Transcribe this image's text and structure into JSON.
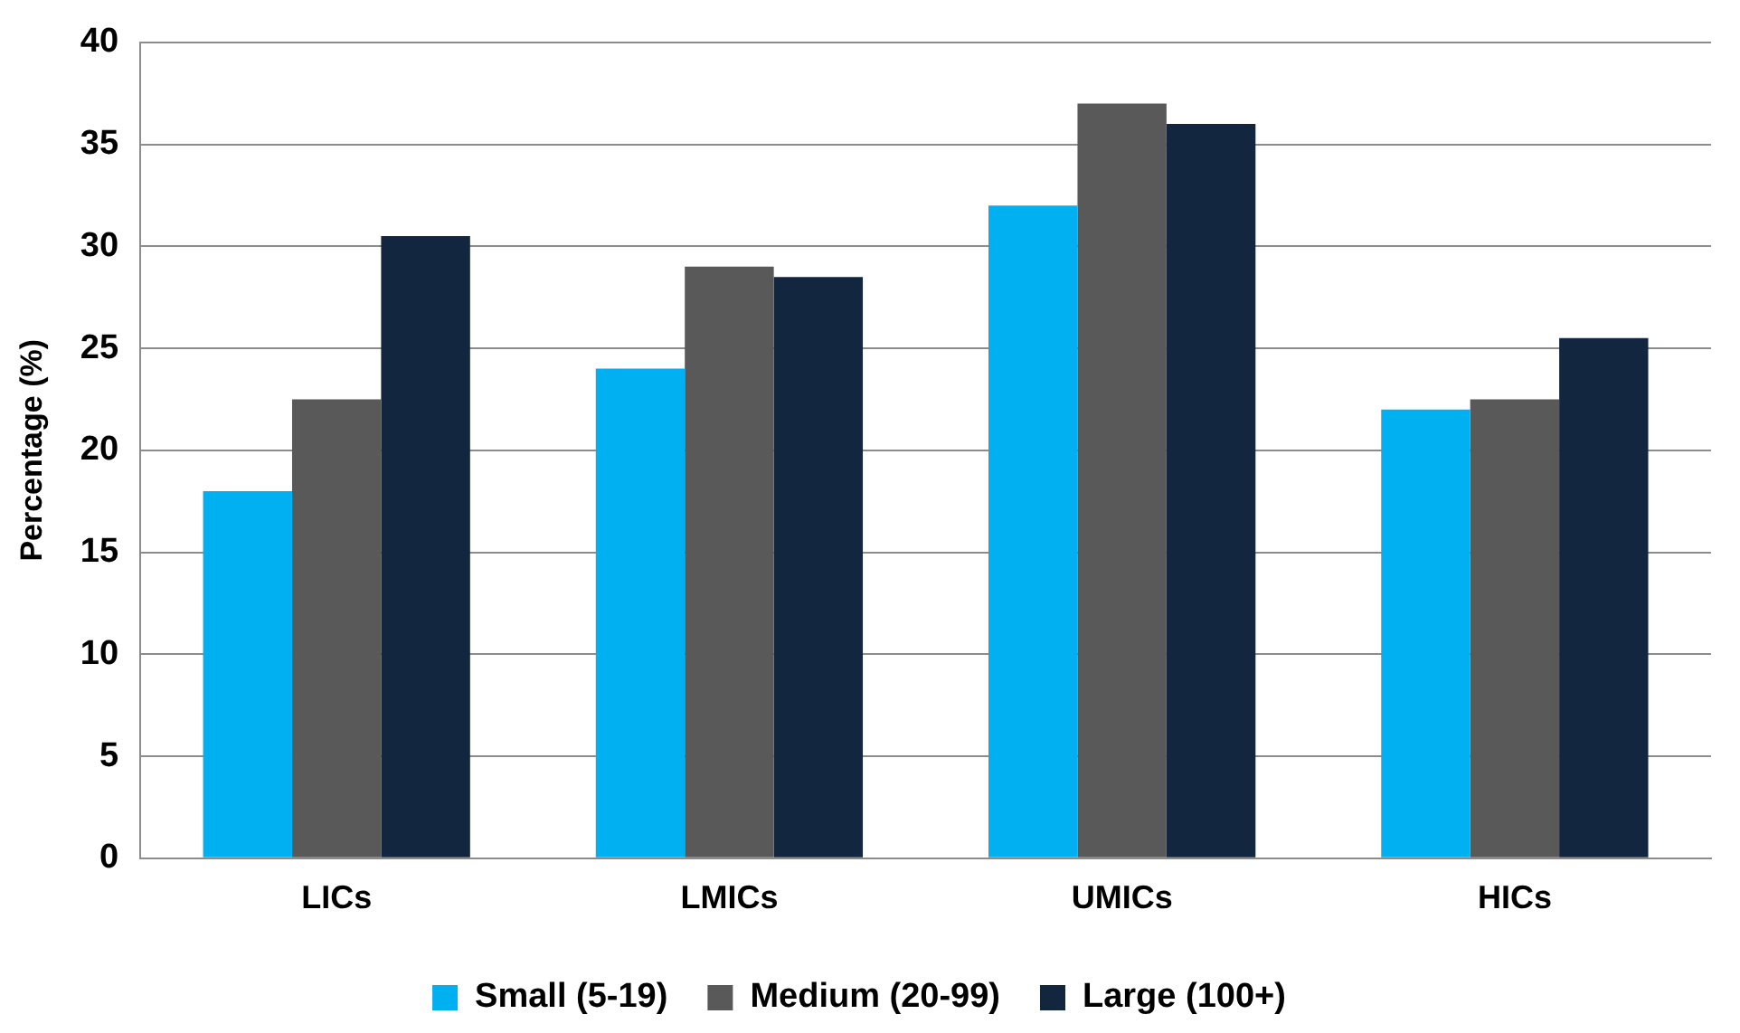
{
  "chart_data": {
    "type": "bar",
    "ylabel": "Percentage (%)",
    "categories": [
      "LICs",
      "LMICs",
      "UMICs",
      "HICs"
    ],
    "series": [
      {
        "name": "Small (5-19)",
        "color": "#00b0f0",
        "values": [
          18,
          24,
          32,
          22
        ]
      },
      {
        "name": "Medium (20-99)",
        "color": "#595959",
        "values": [
          22.5,
          29,
          37,
          22.5
        ]
      },
      {
        "name": "Large (100+)",
        "color": "#132640",
        "values": [
          30.5,
          28.5,
          36,
          25.5
        ]
      }
    ],
    "ylim": [
      0,
      40
    ],
    "yticks": [
      0,
      5,
      10,
      15,
      20,
      25,
      30,
      35,
      40
    ],
    "grid": "y",
    "legend": "bottom"
  }
}
